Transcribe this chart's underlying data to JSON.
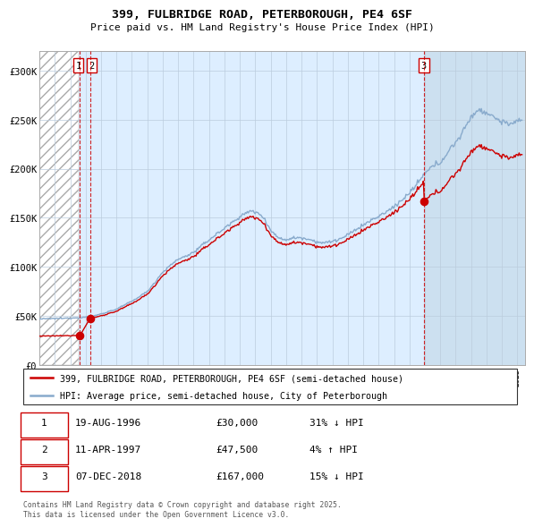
{
  "title_line1": "399, FULBRIDGE ROAD, PETERBOROUGH, PE4 6SF",
  "title_line2": "Price paid vs. HM Land Registry's House Price Index (HPI)",
  "xlim_start": 1994.0,
  "xlim_end": 2025.5,
  "ylim_min": 0,
  "ylim_max": 320000,
  "yticks": [
    0,
    50000,
    100000,
    150000,
    200000,
    250000,
    300000
  ],
  "ytick_labels": [
    "£0",
    "£50K",
    "£100K",
    "£150K",
    "£200K",
    "£250K",
    "£300K"
  ],
  "hatch_end_year": 1996.55,
  "future_start_year": 2018.95,
  "sale1_x": 1996.633,
  "sale1_y": 30000,
  "sale2_x": 1997.283,
  "sale2_y": 47500,
  "sale3_x": 2018.933,
  "sale3_y": 167000,
  "red_line_color": "#cc0000",
  "blue_line_color": "#88aacc",
  "hatch_bg": "#ffffff",
  "main_bg": "#ddeeff",
  "future_bg": "#cce0f0",
  "grid_color": "#bbccdd",
  "legend_label1": "399, FULBRIDGE ROAD, PETERBOROUGH, PE4 6SF (semi-detached house)",
  "legend_label2": "HPI: Average price, semi-detached house, City of Peterborough",
  "table_row1": [
    "1",
    "19-AUG-1996",
    "£30,000",
    "31% ↓ HPI"
  ],
  "table_row2": [
    "2",
    "11-APR-1997",
    "£47,500",
    "4% ↑ HPI"
  ],
  "table_row3": [
    "3",
    "07-DEC-2018",
    "£167,000",
    "15% ↓ HPI"
  ],
  "footer": "Contains HM Land Registry data © Crown copyright and database right 2025.\nThis data is licensed under the Open Government Licence v3.0."
}
